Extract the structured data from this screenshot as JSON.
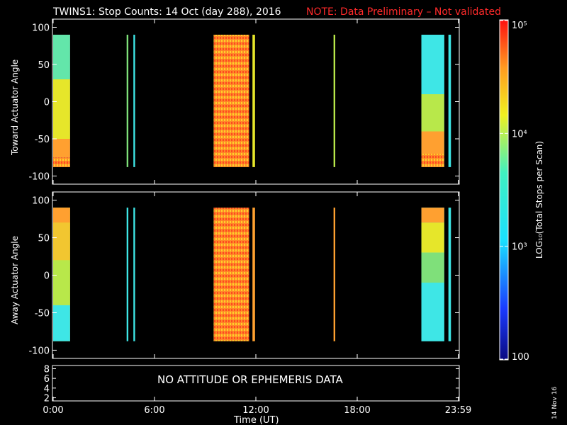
{
  "title": "TWINS1: Stop Counts: 14 Oct (day 288), 2016",
  "note": "NOTE: Data Preliminary – Not validated",
  "date_stamp": "14 Nov 16",
  "no_data_message": "NO ATTITUDE OR EPHEMERIS DATA",
  "x_axis_label": "Time (UT)",
  "colorbar": {
    "label": "LOG₁₀(Total Stops per Scan)",
    "scale": "log",
    "range": [
      100,
      100000
    ],
    "ticks": [
      {
        "value": 100000,
        "label": "10⁵"
      },
      {
        "value": 10000,
        "label": "10⁴"
      },
      {
        "value": 1000,
        "label": "10³"
      },
      {
        "value": 100,
        "label": "100"
      }
    ]
  },
  "chart_data": [
    {
      "type": "heatmap",
      "name": "toward",
      "ylabel": "Toward Actuator Angle",
      "xlim": [
        0,
        24
      ],
      "ylim": [
        -110,
        110
      ],
      "x_ticks": [
        "0:00",
        "6:00",
        "12:00",
        "18:00",
        "23:59"
      ],
      "x_tick_values": [
        0,
        6,
        12,
        18,
        23.98
      ],
      "y_ticks": [
        "100",
        "50",
        "0",
        "-50",
        "-100"
      ],
      "y_tick_values": [
        100,
        50,
        0,
        -50,
        -100
      ],
      "data_angle_range": [
        -88,
        90
      ],
      "data_blocks": [
        {
          "t_start": 0.0,
          "t_end": 1.0,
          "level": "green-yellow",
          "bands": [
            {
              "from": -88,
              "to": -75,
              "level": "mixed-hot"
            },
            {
              "from": -75,
              "to": -50,
              "level": "orange"
            },
            {
              "from": -50,
              "to": 30,
              "level": "yellow"
            },
            {
              "from": 30,
              "to": 90,
              "level": "green-cyan"
            }
          ]
        },
        {
          "t_start": 4.35,
          "t_end": 4.45,
          "level": "green"
        },
        {
          "t_start": 4.75,
          "t_end": 4.85,
          "level": "cyan"
        },
        {
          "t_start": 9.5,
          "t_end": 11.6,
          "level": "orange-red"
        },
        {
          "t_start": 11.8,
          "t_end": 11.95,
          "level": "yellow"
        },
        {
          "t_start": 16.6,
          "t_end": 16.7,
          "level": "yellow-green"
        },
        {
          "t_start": 21.8,
          "t_end": 23.15,
          "level": "cyan",
          "bands": [
            {
              "from": -88,
              "to": -70,
              "level": "mixed-hot"
            },
            {
              "from": -70,
              "to": -40,
              "level": "orange"
            },
            {
              "from": -40,
              "to": 10,
              "level": "yellow-green"
            },
            {
              "from": 10,
              "to": 90,
              "level": "cyan"
            }
          ]
        },
        {
          "t_start": 23.4,
          "t_end": 23.55,
          "level": "cyan"
        }
      ]
    },
    {
      "type": "heatmap",
      "name": "away",
      "ylabel": "Away Actuator Angle",
      "xlim": [
        0,
        24
      ],
      "ylim": [
        -110,
        110
      ],
      "x_ticks": [
        "0:00",
        "6:00",
        "12:00",
        "18:00",
        "23:59"
      ],
      "x_tick_values": [
        0,
        6,
        12,
        18,
        23.98
      ],
      "y_ticks": [
        "100",
        "50",
        "0",
        "-50",
        "-100"
      ],
      "y_tick_values": [
        100,
        50,
        0,
        -50,
        -100
      ],
      "data_angle_range": [
        -88,
        90
      ],
      "data_blocks": [
        {
          "t_start": 0.0,
          "t_end": 1.0,
          "level": "yellow",
          "bands": [
            {
              "from": 70,
              "to": 90,
              "level": "orange"
            },
            {
              "from": 20,
              "to": 70,
              "level": "yellow-orange"
            },
            {
              "from": -40,
              "to": 20,
              "level": "yellow-green"
            },
            {
              "from": -88,
              "to": -40,
              "level": "cyan"
            }
          ]
        },
        {
          "t_start": 4.35,
          "t_end": 4.45,
          "level": "cyan"
        },
        {
          "t_start": 4.75,
          "t_end": 4.85,
          "level": "cyan"
        },
        {
          "t_start": 9.5,
          "t_end": 11.6,
          "level": "orange-red"
        },
        {
          "t_start": 11.8,
          "t_end": 11.95,
          "level": "orange"
        },
        {
          "t_start": 16.6,
          "t_end": 16.7,
          "level": "orange"
        },
        {
          "t_start": 21.8,
          "t_end": 23.15,
          "level": "cyan",
          "bands": [
            {
              "from": 70,
              "to": 90,
              "level": "orange"
            },
            {
              "from": 30,
              "to": 70,
              "level": "yellow"
            },
            {
              "from": -10,
              "to": 30,
              "level": "green"
            },
            {
              "from": -88,
              "to": -10,
              "level": "cyan"
            }
          ]
        },
        {
          "t_start": 23.4,
          "t_end": 23.55,
          "level": "cyan"
        }
      ]
    },
    {
      "type": "line",
      "name": "attitude",
      "ylim": [
        1.5,
        8.5
      ],
      "y_ticks": [
        "8",
        "6",
        "4",
        "2"
      ],
      "y_tick_values": [
        8,
        6,
        4,
        2
      ],
      "x_ticks": [
        "0:00",
        "6:00",
        "12:00",
        "18:00",
        "23:59"
      ],
      "x_tick_values": [
        0,
        6,
        12,
        18,
        23.98
      ],
      "series": []
    }
  ],
  "colors": {
    "cyan": "#3ee6e6",
    "green-cyan": "#63e6aa",
    "green": "#7fe07a",
    "yellow-green": "#b8e84a",
    "yellow": "#e6e62a",
    "yellow-orange": "#f2c630",
    "orange": "#ffa030",
    "orange-red": "#ff7a2a",
    "mixed-hot": "#ff8a28",
    "red": "#ff2a2a"
  }
}
